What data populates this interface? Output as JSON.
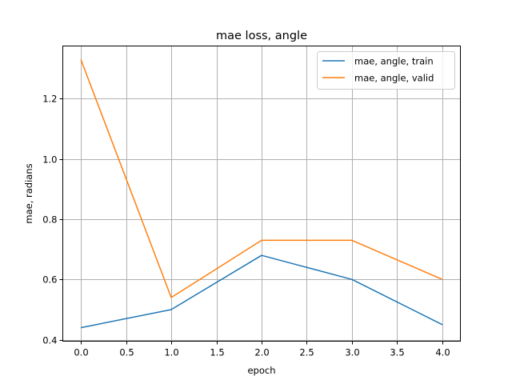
{
  "chart_data": {
    "type": "line",
    "title": "mae loss, angle",
    "xlabel": "epoch",
    "ylabel": "mae, radians",
    "x": [
      0,
      1,
      2,
      3,
      4
    ],
    "series": [
      {
        "name": "mae, angle, train",
        "color": "#1f77b4",
        "values": [
          0.44,
          0.5,
          0.68,
          0.6,
          0.45
        ]
      },
      {
        "name": "mae, angle, valid",
        "color": "#ff7f0e",
        "values": [
          1.33,
          0.54,
          0.73,
          0.73,
          0.6
        ]
      }
    ],
    "xticks": [
      "0.0",
      "0.5",
      "1.0",
      "1.5",
      "2.0",
      "2.5",
      "3.0",
      "3.5",
      "4.0"
    ],
    "xtick_values": [
      0,
      0.5,
      1,
      1.5,
      2,
      2.5,
      3,
      3.5,
      4
    ],
    "yticks": [
      "0.4",
      "0.6",
      "0.8",
      "1.0",
      "1.2"
    ],
    "ytick_values": [
      0.4,
      0.6,
      0.8,
      1.0,
      1.2
    ],
    "xlim": [
      -0.2,
      4.2
    ],
    "ylim": [
      0.395,
      1.375
    ],
    "grid": true,
    "legend_position": "upper right"
  }
}
